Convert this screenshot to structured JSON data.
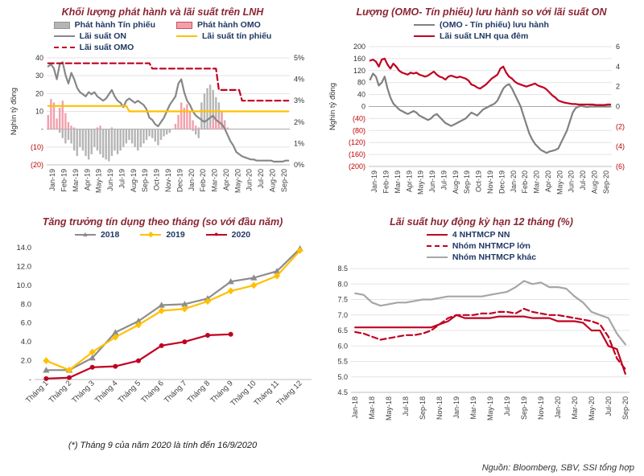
{
  "footnote": "(*) Tháng 9 của năm 2020 là tính đến 16/9/2020",
  "source_note": "Nguồn:  Bloomberg, SBV, SSI tổng hợp",
  "chart_data": [
    {
      "type": "combo_bar_line",
      "title": "Khối lượng phát hành và lãi suất trên LNH",
      "legend_columns": 2,
      "points_per_label": 4,
      "grid": true,
      "x_labels": [
        "Jan-19",
        "Feb-19",
        "Mar-19",
        "Apr-19",
        "May-19",
        "Jun-19",
        "Jul-19",
        "Aug-19",
        "Sep-19",
        "Oct-19",
        "Nov-19",
        "Dec-19",
        "Jan-20",
        "Feb-20",
        "Mar-20",
        "Apr-20",
        "May-20",
        "Jun-20",
        "Jul-20",
        "Aug-20",
        "Sep-20"
      ],
      "left_axis": {
        "title": "Nghìn tỷ đồng",
        "min": -20,
        "max": 40,
        "ticks": [
          "40",
          "30",
          "20",
          "10",
          "-",
          "(10)",
          "(20)"
        ]
      },
      "right_axis": {
        "min": 0,
        "max": 5,
        "ticks": [
          "5%",
          "4%",
          "3%",
          "2%",
          "1%",
          "0%"
        ]
      },
      "bars": [
        {
          "name": "Phát hành Tín phiếu",
          "color": "#b5b5b5",
          "values": [
            0,
            0,
            0,
            0,
            -2,
            -5,
            -8,
            -6,
            -8,
            -12,
            -15,
            -10,
            -12,
            -15,
            -17,
            -14,
            -10,
            -12,
            -14,
            -16,
            -17,
            -18,
            -15,
            -12,
            -14,
            -12,
            -10,
            -8,
            -6,
            -8,
            -10,
            -12,
            -10,
            -8,
            -6,
            -4,
            -5,
            -7,
            -9,
            -6,
            -4,
            -3,
            -2,
            0,
            0,
            0,
            0,
            0,
            0,
            0,
            -1,
            -3,
            -5,
            15,
            20,
            23,
            25,
            22,
            18,
            15,
            10,
            5,
            0,
            0,
            0,
            0,
            0,
            0,
            0,
            0,
            0,
            0,
            0,
            0,
            0,
            0,
            0,
            0,
            0,
            0,
            0,
            0,
            0,
            0
          ]
        },
        {
          "name": "Phát hành OMO",
          "color": "#f2a0ac",
          "border": "#c94f5e",
          "values": [
            8,
            17,
            15,
            6,
            12,
            16,
            9,
            4,
            2,
            1,
            0,
            0,
            0,
            0,
            0,
            0,
            0,
            1,
            2,
            0,
            0,
            0,
            1,
            0,
            0,
            0,
            0,
            0,
            0,
            0,
            0,
            0,
            0,
            0,
            0,
            0,
            0,
            0,
            0,
            0,
            0,
            0,
            0,
            0,
            3,
            8,
            15,
            12,
            14,
            10,
            5,
            2,
            1,
            0,
            0,
            0,
            2,
            5,
            8,
            6,
            9,
            4,
            1,
            0,
            0,
            0,
            0,
            0,
            0,
            0,
            0,
            0,
            0,
            0,
            0,
            0,
            0,
            0,
            0,
            0,
            0,
            0,
            0,
            0
          ]
        }
      ],
      "lines": [
        {
          "name": "Lãi suất ON",
          "color": "#878787",
          "axis": "right",
          "values": [
            4.6,
            4.7,
            4.5,
            4.0,
            4.7,
            4.8,
            4.2,
            3.8,
            4.3,
            4.0,
            3.6,
            3.4,
            3.3,
            3.2,
            3.4,
            3.3,
            3.4,
            3.2,
            3.1,
            3.0,
            3.1,
            3.3,
            3.5,
            3.2,
            3.0,
            2.9,
            2.7,
            3.0,
            3.1,
            3.0,
            2.9,
            3.0,
            2.9,
            2.8,
            2.6,
            2.2,
            2.1,
            1.9,
            1.8,
            2.0,
            2.2,
            2.5,
            2.8,
            3.0,
            3.2,
            3.8,
            4.0,
            3.4,
            3.0,
            2.8,
            2.5,
            2.3,
            2.2,
            2.1,
            2.0,
            2.1,
            2.2,
            2.3,
            2.1,
            2.0,
            1.9,
            1.7,
            1.4,
            1.1,
            0.9,
            0.6,
            0.5,
            0.4,
            0.35,
            0.3,
            0.25,
            0.25,
            0.2,
            0.2,
            0.2,
            0.2,
            0.2,
            0.2,
            0.15,
            0.15,
            0.15,
            0.15,
            0.2,
            0.2
          ]
        },
        {
          "name": "Lãi suất tín phiếu",
          "color": "#ffc000",
          "axis": "right",
          "values": [
            2.75,
            2.75,
            2.75,
            2.75,
            2.75,
            2.75,
            2.75,
            2.75,
            2.75,
            2.75,
            2.75,
            2.75,
            2.75,
            2.75,
            2.75,
            2.75,
            2.75,
            2.75,
            2.75,
            2.75,
            2.75,
            2.75,
            2.75,
            2.75,
            2.75,
            2.75,
            2.75,
            2.75,
            2.5,
            2.5,
            2.5,
            2.5,
            2.5,
            2.5,
            2.5,
            2.5,
            2.5,
            2.5,
            2.5,
            2.5,
            2.5,
            2.5,
            2.5,
            2.5,
            2.5,
            2.5,
            2.5,
            2.5,
            2.5,
            2.5,
            2.5,
            2.5,
            2.5,
            2.5,
            2.5,
            2.5,
            2.5,
            2.5,
            2.5,
            2.5,
            2.5,
            2.5,
            2.5,
            2.5,
            2.5,
            2.5,
            2.5,
            2.5,
            2.5,
            2.5,
            2.5,
            2.5,
            2.5,
            2.5,
            2.5,
            2.5,
            2.5,
            2.5,
            2.5,
            2.5,
            2.5,
            2.5,
            2.5,
            2.5
          ]
        },
        {
          "name": "Lãi suất OMO",
          "color": "#c00020",
          "axis": "right",
          "dash": true,
          "values": [
            4.75,
            4.75,
            4.75,
            4.75,
            4.75,
            4.75,
            4.75,
            4.75,
            4.75,
            4.75,
            4.75,
            4.75,
            4.75,
            4.75,
            4.75,
            4.75,
            4.75,
            4.75,
            4.75,
            4.75,
            4.75,
            4.75,
            4.75,
            4.75,
            4.75,
            4.75,
            4.75,
            4.75,
            4.75,
            4.75,
            4.75,
            4.75,
            4.75,
            4.75,
            4.75,
            4.75,
            4.5,
            4.5,
            4.5,
            4.5,
            4.5,
            4.5,
            4.5,
            4.5,
            4.5,
            4.5,
            4.5,
            4.5,
            4.5,
            4.5,
            4.5,
            4.5,
            4.5,
            4.5,
            4.5,
            4.5,
            4.5,
            4.5,
            4.5,
            3.5,
            3.5,
            3.5,
            3.5,
            3.5,
            3.5,
            3.5,
            3.5,
            3.0,
            3.0,
            3.0,
            3.0,
            3.0,
            3.0,
            3.0,
            3.0,
            3.0,
            3.0,
            3.0,
            3.0,
            3.0,
            3.0,
            3.0,
            3.0,
            3.0
          ]
        }
      ]
    },
    {
      "type": "dual_line",
      "title": "Lượng (OMO- Tín phiếu) lưu hành so với lãi suất ON",
      "legend_columns": 1,
      "points_per_label": 4,
      "grid": true,
      "x_labels": [
        "Jan-19",
        "Feb-19",
        "Mar-19",
        "Apr-19",
        "May-19",
        "Jun-19",
        "Jul-19",
        "Aug-19",
        "Sep-19",
        "Oct-19",
        "Nov-19",
        "Dec-19",
        "Jan-20",
        "Feb-20",
        "Mar-20",
        "Apr-20",
        "May-20",
        "Jun-20",
        "Jul-20",
        "Aug-20",
        "Sep-20"
      ],
      "left_axis": {
        "title": "Nghìn tỷ đồng",
        "min": -200,
        "max": 200,
        "ticks": [
          "200",
          "160",
          "120",
          "80",
          "40",
          "0",
          "(40)",
          "(80)",
          "(120)",
          "(160)",
          "(200)"
        ]
      },
      "right_axis": {
        "min": -6,
        "max": 6,
        "ticks": [
          "6",
          "4",
          "2",
          "0",
          "(2)",
          "(4)",
          "(6)"
        ]
      },
      "lines": [
        {
          "name": "(OMO - Tín phiếu) lưu hành",
          "color": "#808080",
          "axis": "left",
          "values": [
            90,
            110,
            100,
            70,
            80,
            100,
            60,
            30,
            10,
            0,
            -10,
            -15,
            -20,
            -25,
            -20,
            -15,
            -20,
            -30,
            -35,
            -40,
            -45,
            -40,
            -30,
            -25,
            -35,
            -45,
            -55,
            -60,
            -65,
            -60,
            -55,
            -50,
            -45,
            -40,
            -30,
            -20,
            -25,
            -30,
            -20,
            -10,
            -5,
            0,
            5,
            10,
            20,
            40,
            60,
            70,
            75,
            60,
            40,
            20,
            0,
            -30,
            -60,
            -90,
            -110,
            -125,
            -135,
            -145,
            -150,
            -155,
            -150,
            -148,
            -145,
            -140,
            -120,
            -100,
            -80,
            -50,
            -20,
            -5,
            0,
            2,
            0,
            -2,
            0,
            0,
            0,
            0,
            0,
            0,
            0,
            0
          ]
        },
        {
          "name": "Lãi suất LNH qua đêm",
          "color": "#c00020",
          "axis": "right",
          "values": [
            4.6,
            4.7,
            4.5,
            4.0,
            4.7,
            4.8,
            4.2,
            3.8,
            4.3,
            4.0,
            3.6,
            3.4,
            3.3,
            3.2,
            3.4,
            3.3,
            3.4,
            3.2,
            3.1,
            3.0,
            3.1,
            3.3,
            3.5,
            3.2,
            3.0,
            2.9,
            2.7,
            3.0,
            3.1,
            3.0,
            2.9,
            3.0,
            2.9,
            2.8,
            2.6,
            2.2,
            2.1,
            1.9,
            1.8,
            2.0,
            2.2,
            2.5,
            2.8,
            3.0,
            3.2,
            3.8,
            4.0,
            3.4,
            3.0,
            2.8,
            2.5,
            2.3,
            2.2,
            2.1,
            2.0,
            2.1,
            2.2,
            2.3,
            2.1,
            2.0,
            1.9,
            1.7,
            1.4,
            1.1,
            0.9,
            0.6,
            0.5,
            0.4,
            0.35,
            0.3,
            0.25,
            0.25,
            0.2,
            0.2,
            0.2,
            0.2,
            0.2,
            0.2,
            0.15,
            0.15,
            0.15,
            0.15,
            0.2,
            0.2
          ]
        }
      ]
    },
    {
      "type": "marker_line",
      "title": "Tăng trưởng tín dụng theo tháng (so với đầu năm)",
      "legend_columns": 3,
      "points_per_label": 1,
      "grid": false,
      "x_labels": [
        "Tháng 1",
        "Tháng 2",
        "Tháng 3",
        "Tháng 4",
        "Tháng 5",
        "Tháng 6",
        "Tháng 7",
        "Tháng 8",
        "Tháng 9",
        "Tháng 10",
        "Tháng 11",
        "Tháng 12"
      ],
      "left_axis": {
        "min": 0,
        "max": 14,
        "ticks": [
          "14.0",
          "12.0",
          "10.0",
          "8.0",
          "6.0",
          "4.0",
          "2.0",
          "-"
        ]
      },
      "lines": [
        {
          "name": "2018",
          "color": "#8c8c8c",
          "marker": "triangle",
          "values": [
            1.0,
            1.0,
            2.3,
            5.0,
            6.2,
            7.9,
            8.0,
            8.6,
            10.4,
            10.8,
            11.5,
            13.9
          ]
        },
        {
          "name": "2019",
          "color": "#ffc000",
          "marker": "diamond",
          "values": [
            2.0,
            1.0,
            2.9,
            4.5,
            5.8,
            7.3,
            7.5,
            8.3,
            9.4,
            10.0,
            11.0,
            13.7
          ]
        },
        {
          "name": "2020",
          "color": "#c00020",
          "marker": "circle",
          "values": [
            0.1,
            0.2,
            1.3,
            1.4,
            2.0,
            3.6,
            4.0,
            4.7,
            4.8
          ]
        }
      ]
    },
    {
      "type": "line",
      "title": "Lãi suất huy động kỳ hạn 12 tháng (%)",
      "legend_columns": 1,
      "points_per_label": 2,
      "grid": true,
      "x_labels": [
        "Jan-18",
        "Mar-18",
        "May-18",
        "Jul-18",
        "Sep-18",
        "Nov-18",
        "Jan-19",
        "Mar-19",
        "May-19",
        "Jul-19",
        "Sep-19",
        "Nov-19",
        "Jan-20",
        "Mar-20",
        "May-20",
        "Jul-20",
        "Sep-20"
      ],
      "left_axis": {
        "min": 4.5,
        "max": 8.5,
        "ticks": [
          "8.5",
          "8.0",
          "7.5",
          "7.0",
          "6.5",
          "6.0",
          "5.5",
          "5.0",
          "4.5"
        ]
      },
      "lines": [
        {
          "name": "4 NHTMCP NN",
          "color": "#c00020",
          "values": [
            6.6,
            6.6,
            6.6,
            6.6,
            6.6,
            6.6,
            6.6,
            6.6,
            6.6,
            6.6,
            6.7,
            6.8,
            7.0,
            6.9,
            6.9,
            6.9,
            6.9,
            6.95,
            6.95,
            6.95,
            6.95,
            6.9,
            6.9,
            6.9,
            6.8,
            6.8,
            6.8,
            6.75,
            6.5,
            6.5,
            6.0,
            5.9,
            5.1
          ]
        },
        {
          "name": "Nhóm NHTMCP lớn",
          "color": "#c00020",
          "dash": true,
          "values": [
            6.45,
            6.4,
            6.3,
            6.2,
            6.25,
            6.3,
            6.35,
            6.35,
            6.4,
            6.5,
            6.7,
            6.9,
            7.0,
            7.0,
            7.0,
            7.05,
            7.05,
            7.1,
            7.1,
            7.05,
            7.2,
            7.1,
            7.05,
            7.0,
            7.0,
            6.95,
            6.9,
            6.85,
            6.8,
            6.7,
            6.3,
            5.6,
            5.25
          ]
        },
        {
          "name": "Nhóm NHTMCP khác",
          "color": "#a6a6a6",
          "values": [
            7.7,
            7.65,
            7.4,
            7.3,
            7.35,
            7.4,
            7.4,
            7.45,
            7.5,
            7.5,
            7.55,
            7.6,
            7.6,
            7.6,
            7.6,
            7.6,
            7.65,
            7.7,
            7.75,
            7.9,
            8.1,
            8.0,
            8.05,
            7.9,
            7.9,
            7.85,
            7.6,
            7.4,
            7.1,
            7.0,
            6.9,
            6.4,
            6.05
          ]
        }
      ]
    }
  ]
}
